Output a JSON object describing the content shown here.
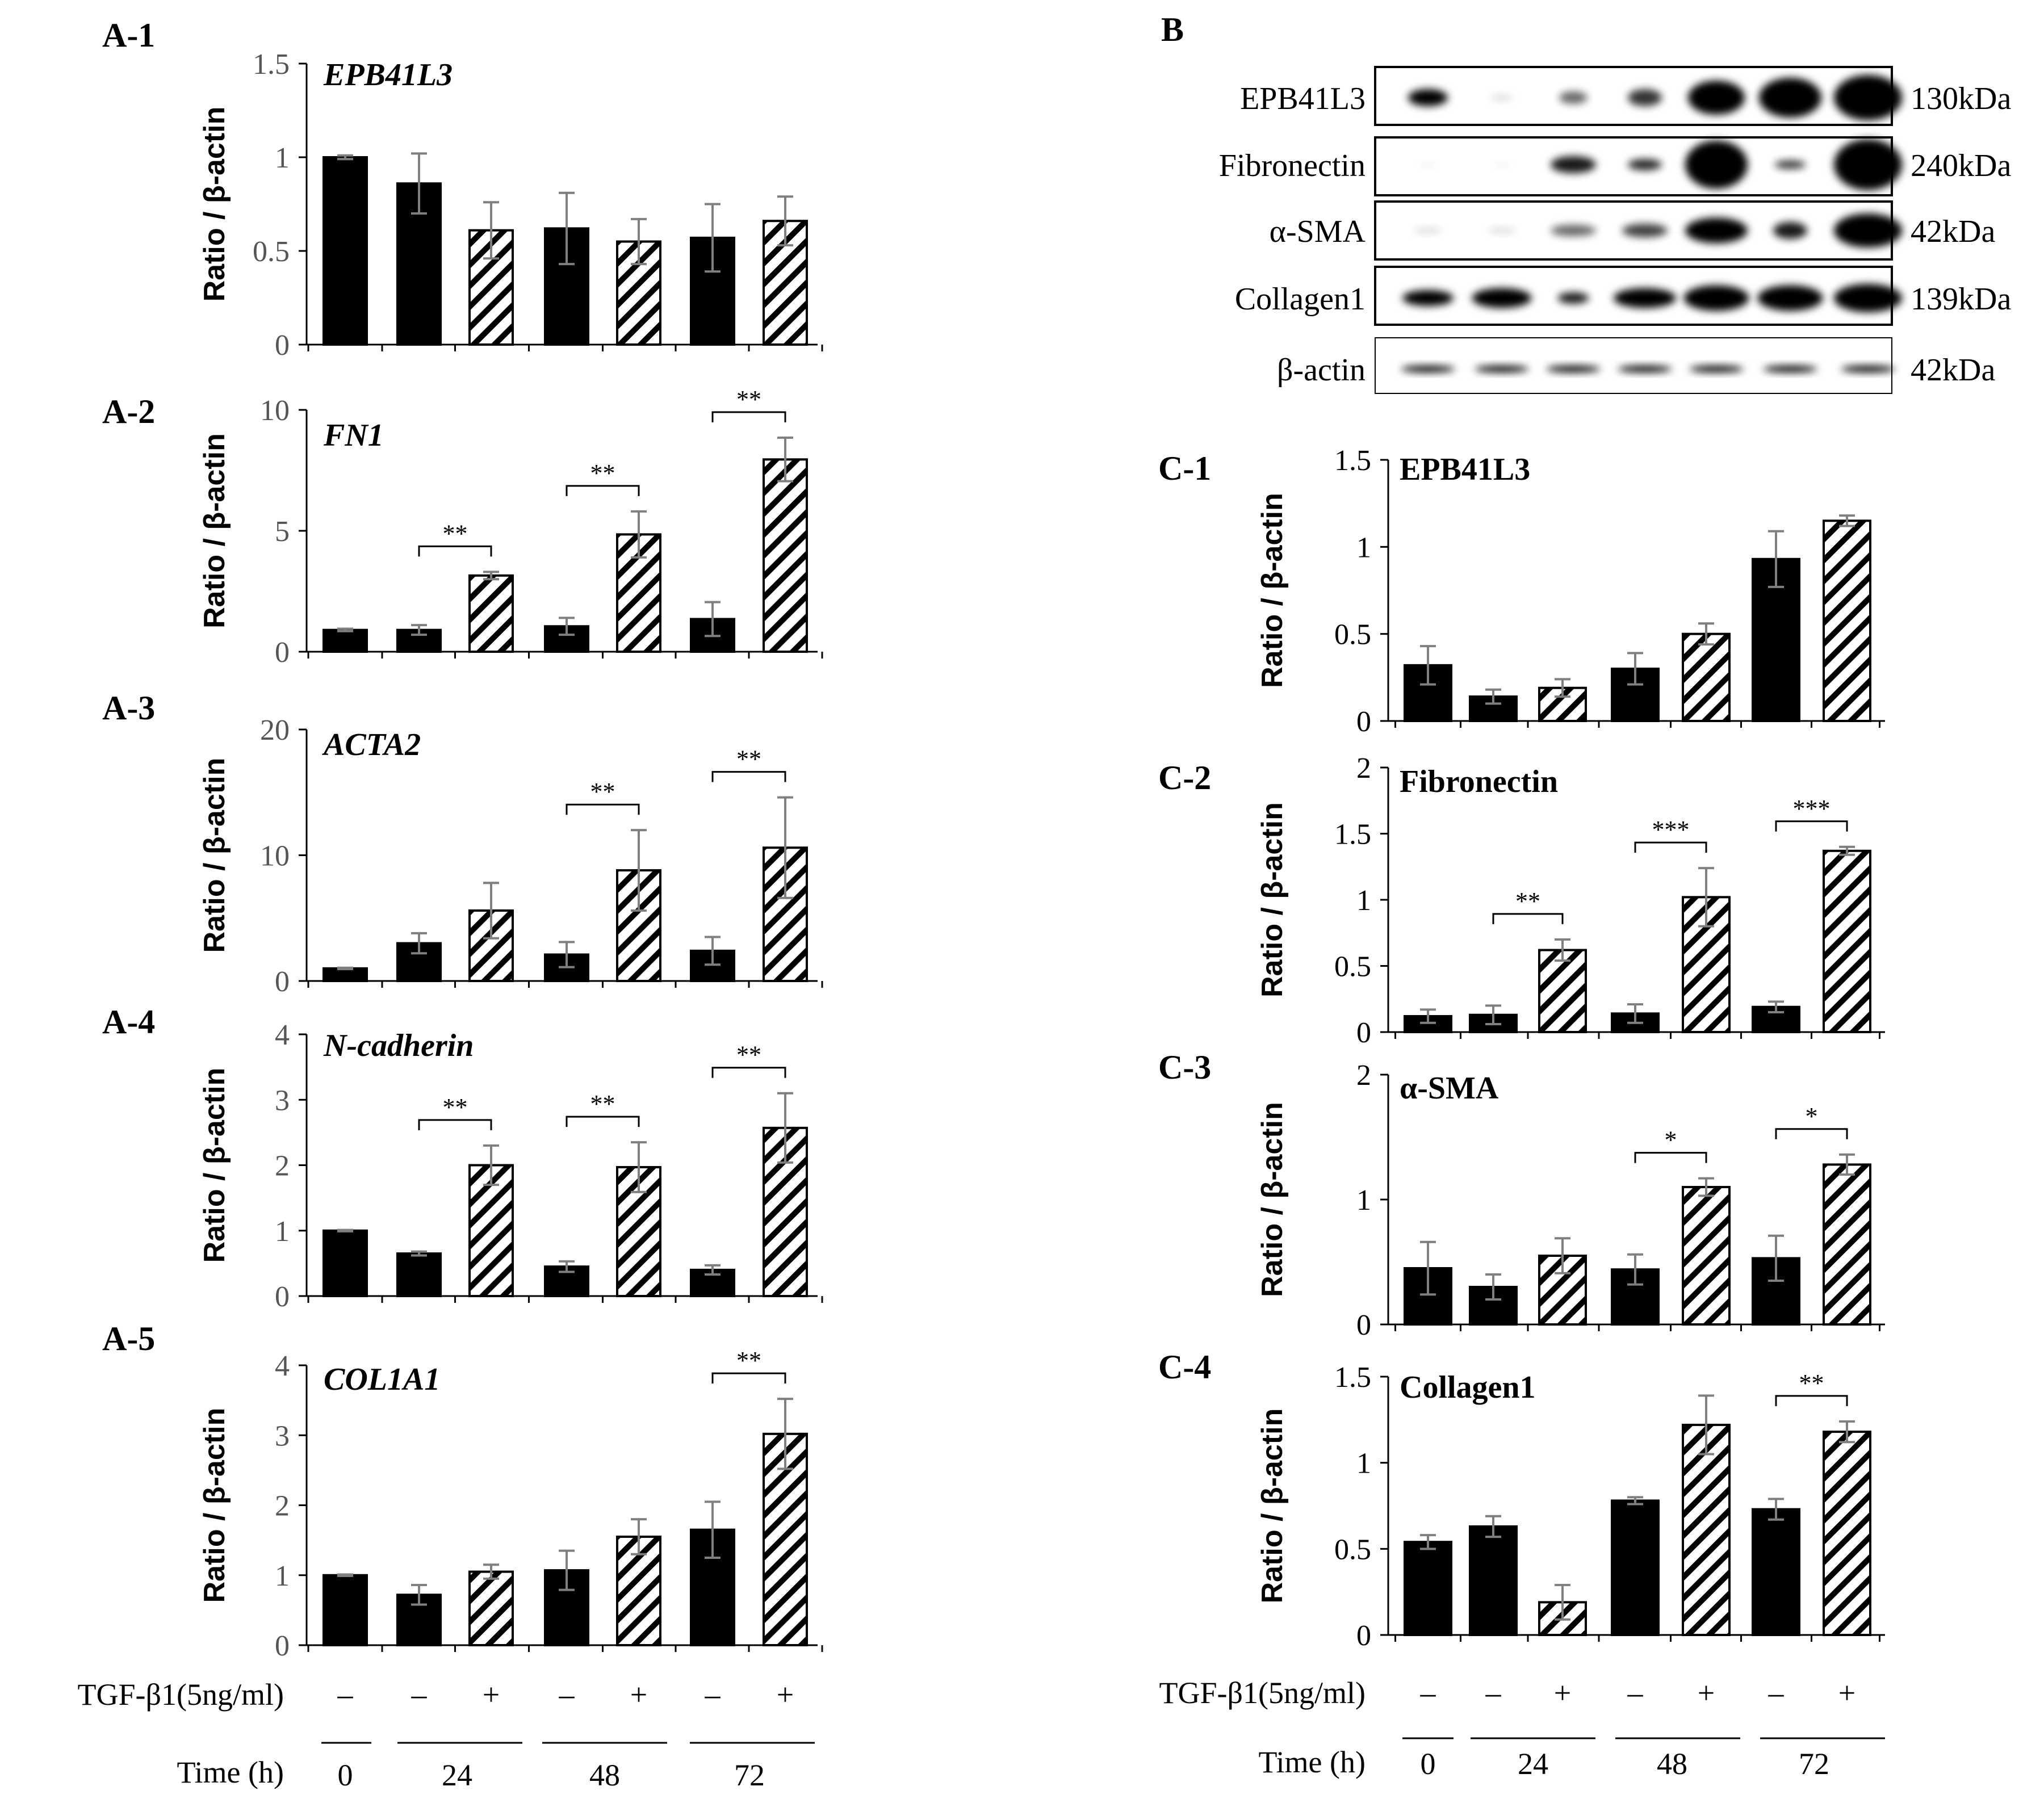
{
  "panels": {
    "A1": "A-1",
    "A2": "A-2",
    "A3": "A-3",
    "A4": "A-4",
    "A5": "A-5",
    "B": "B",
    "C1": "C-1",
    "C2": "C-2",
    "C3": "C-3",
    "C4": "C-4"
  },
  "ylabel": "Ratio / β-actin",
  "conditions": {
    "tgf_label": "TGF-β1(5ng/ml)",
    "tgf_signs": [
      "–",
      "–",
      "+",
      "–",
      "+",
      "–",
      "+"
    ],
    "time_label": "Time (h)",
    "times": [
      "0",
      "24",
      "48",
      "72"
    ]
  },
  "blot": {
    "proteins": [
      "EPB41L3",
      "Fibronectin",
      "α-SMA",
      "Collagen1",
      "β-actin"
    ],
    "sizes": [
      "130kDa",
      "240kDa",
      "42kDa",
      "139kDa",
      "42kDa"
    ]
  },
  "colors": {
    "bar_fill": "#000000",
    "hatch": "#000000",
    "error": "#7f7f7f"
  },
  "chart_data": [
    {
      "id": "A-1",
      "type": "bar",
      "title": "EPB41L3",
      "title_style": "italic",
      "ylabel": "Ratio / β-actin",
      "ylim": [
        0,
        1.5
      ],
      "yticks": [
        "0",
        "0.5",
        "1",
        "1.5"
      ],
      "ytick_values": [
        0,
        0.5,
        1,
        1.5
      ],
      "categories": [
        "0h –",
        "24h –",
        "24h +",
        "48h –",
        "48h +",
        "72h –",
        "72h +"
      ],
      "values": [
        1.0,
        0.86,
        0.61,
        0.62,
        0.55,
        0.57,
        0.66
      ],
      "errors": [
        0.01,
        0.16,
        0.15,
        0.19,
        0.12,
        0.18,
        0.13
      ],
      "significance": []
    },
    {
      "id": "A-2",
      "type": "bar",
      "title": "FN1",
      "title_style": "italic",
      "ylabel": "Ratio / β-actin",
      "ylim": [
        0,
        10
      ],
      "yticks": [
        "0",
        "5",
        "10"
      ],
      "ytick_values": [
        0,
        5,
        10
      ],
      "categories": [
        "0h –",
        "24h –",
        "24h +",
        "48h –",
        "48h +",
        "72h –",
        "72h +"
      ],
      "values": [
        0.9,
        0.9,
        3.15,
        1.05,
        4.85,
        1.35,
        7.95
      ],
      "errors": [
        0.05,
        0.2,
        0.15,
        0.35,
        0.95,
        0.7,
        0.9
      ],
      "significance": [
        {
          "from": 1,
          "to": 2,
          "label": "**"
        },
        {
          "from": 3,
          "to": 4,
          "label": "**"
        },
        {
          "from": 5,
          "to": 6,
          "label": "**"
        }
      ]
    },
    {
      "id": "A-3",
      "type": "bar",
      "title": "ACTA2",
      "title_style": "italic",
      "ylabel": "Ratio / β-actin",
      "ylim": [
        0,
        20
      ],
      "yticks": [
        "0",
        "10",
        "20"
      ],
      "ytick_values": [
        0,
        10,
        20
      ],
      "categories": [
        "0h –",
        "24h –",
        "24h +",
        "48h –",
        "48h +",
        "72h –",
        "72h +"
      ],
      "values": [
        1.0,
        3.0,
        5.6,
        2.1,
        8.8,
        2.4,
        10.6
      ],
      "errors": [
        0.05,
        0.8,
        2.2,
        1.0,
        3.2,
        1.1,
        4.0
      ],
      "significance": [
        {
          "from": 3,
          "to": 4,
          "label": "**"
        },
        {
          "from": 5,
          "to": 6,
          "label": "**"
        }
      ]
    },
    {
      "id": "A-4",
      "type": "bar",
      "title": "N-cadherin",
      "title_style": "italic",
      "ylabel": "Ratio / β-actin",
      "ylim": [
        0,
        4
      ],
      "yticks": [
        "0",
        "1",
        "2",
        "3",
        "4"
      ],
      "ytick_values": [
        0,
        1,
        2,
        3,
        4
      ],
      "categories": [
        "0h –",
        "24h –",
        "24h +",
        "48h –",
        "48h +",
        "72h –",
        "72h +"
      ],
      "values": [
        1.0,
        0.65,
        2.0,
        0.45,
        1.97,
        0.4,
        2.57
      ],
      "errors": [
        0.01,
        0.03,
        0.3,
        0.08,
        0.38,
        0.07,
        0.53
      ],
      "significance": [
        {
          "from": 1,
          "to": 2,
          "label": "**"
        },
        {
          "from": 3,
          "to": 4,
          "label": "**"
        },
        {
          "from": 5,
          "to": 6,
          "label": "**"
        }
      ]
    },
    {
      "id": "A-5",
      "type": "bar",
      "title": "COL1A1",
      "title_style": "italic",
      "ylabel": "Ratio / β-actin",
      "ylim": [
        0,
        4
      ],
      "yticks": [
        "0",
        "1",
        "2",
        "3",
        "4"
      ],
      "ytick_values": [
        0,
        1,
        2,
        3,
        4
      ],
      "categories": [
        "0h –",
        "24h –",
        "24h +",
        "48h –",
        "48h +",
        "72h –",
        "72h +"
      ],
      "values": [
        1.0,
        0.72,
        1.05,
        1.07,
        1.55,
        1.65,
        3.02
      ],
      "errors": [
        0.01,
        0.14,
        0.1,
        0.28,
        0.25,
        0.4,
        0.5
      ],
      "significance": [
        {
          "from": 5,
          "to": 6,
          "label": "**"
        }
      ]
    },
    {
      "id": "C-1",
      "type": "bar",
      "title": "EPB41L3",
      "title_style": "bold",
      "ylabel": "Ratio / β-actin",
      "ylim": [
        0,
        1.5
      ],
      "yticks": [
        "0",
        "0.5",
        "1",
        "1.5"
      ],
      "ytick_values": [
        0,
        0.5,
        1,
        1.5
      ],
      "categories": [
        "0h –",
        "24h –",
        "24h +",
        "48h –",
        "48h +",
        "72h –",
        "72h +"
      ],
      "values": [
        0.32,
        0.14,
        0.19,
        0.3,
        0.5,
        0.93,
        1.15
      ],
      "errors": [
        0.11,
        0.04,
        0.05,
        0.09,
        0.06,
        0.16,
        0.03
      ],
      "significance": []
    },
    {
      "id": "C-2",
      "type": "bar",
      "title": "Fibronectin",
      "title_style": "bold",
      "ylabel": "Ratio / β-actin",
      "ylim": [
        0,
        2
      ],
      "yticks": [
        "0",
        "0.5",
        "1",
        "1.5",
        "2"
      ],
      "ytick_values": [
        0,
        0.5,
        1,
        1.5,
        2
      ],
      "categories": [
        "0h –",
        "24h –",
        "24h +",
        "48h –",
        "48h +",
        "72h –",
        "72h +"
      ],
      "values": [
        0.12,
        0.13,
        0.62,
        0.14,
        1.02,
        0.19,
        1.37
      ],
      "errors": [
        0.05,
        0.07,
        0.08,
        0.07,
        0.22,
        0.04,
        0.03
      ],
      "significance": [
        {
          "from": 1,
          "to": 2,
          "label": "**"
        },
        {
          "from": 3,
          "to": 4,
          "label": "***"
        },
        {
          "from": 5,
          "to": 6,
          "label": "***"
        }
      ]
    },
    {
      "id": "C-3",
      "type": "bar",
      "title": "α-SMA",
      "title_style": "bold",
      "ylabel": "Ratio / β-actin",
      "ylim": [
        0,
        2
      ],
      "yticks": [
        "0",
        "1",
        "2"
      ],
      "ytick_values": [
        0,
        1,
        2
      ],
      "categories": [
        "0h –",
        "24h –",
        "24h +",
        "48h –",
        "48h +",
        "72h –",
        "72h +"
      ],
      "values": [
        0.45,
        0.3,
        0.55,
        0.44,
        1.1,
        0.53,
        1.28
      ],
      "errors": [
        0.21,
        0.1,
        0.14,
        0.12,
        0.07,
        0.18,
        0.08
      ],
      "significance": [
        {
          "from": 3,
          "to": 4,
          "label": "*"
        },
        {
          "from": 5,
          "to": 6,
          "label": "*"
        }
      ]
    },
    {
      "id": "C-4",
      "type": "bar",
      "title": "Collagen1",
      "title_style": "bold",
      "ylabel": "Ratio / β-actin",
      "ylim": [
        0,
        1.5
      ],
      "yticks": [
        "0",
        "0.5",
        "1",
        "1.5"
      ],
      "ytick_values": [
        0,
        0.5,
        1,
        1.5
      ],
      "categories": [
        "0h –",
        "24h –",
        "24h +",
        "48h –",
        "48h +",
        "72h –",
        "72h +"
      ],
      "values": [
        0.54,
        0.63,
        0.19,
        0.78,
        1.22,
        0.73,
        1.18
      ],
      "errors": [
        0.04,
        0.06,
        0.1,
        0.02,
        0.17,
        0.06,
        0.06
      ],
      "significance": [
        {
          "from": 5,
          "to": 6,
          "label": "**"
        }
      ]
    }
  ]
}
